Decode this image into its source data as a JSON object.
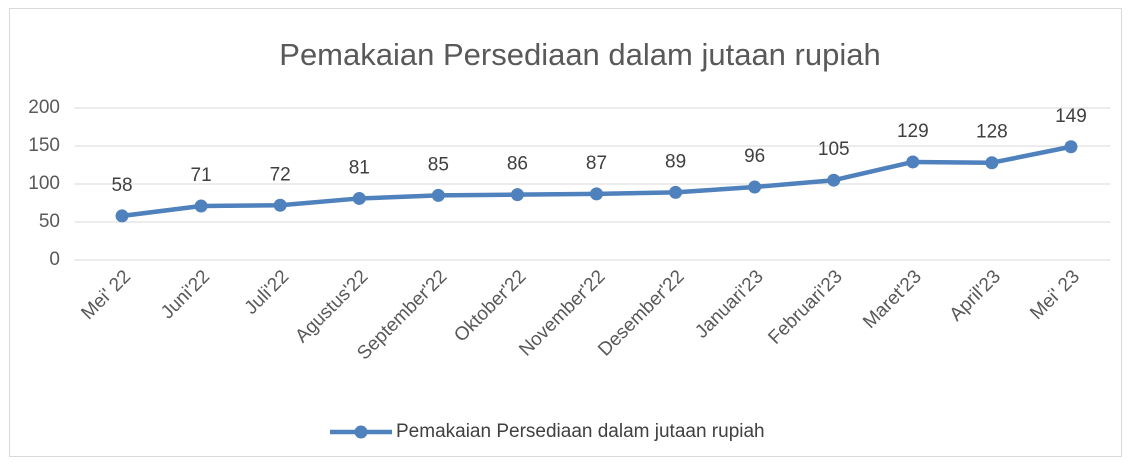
{
  "chart_data": {
    "type": "line",
    "title": "Pemakaian Persediaan dalam jutaan rupiah",
    "categories": [
      "Mei' 22",
      "Juni'22",
      "Juli'22",
      "Agustus'22",
      "September'22",
      "Oktober'22",
      "November'22",
      "Desember'22",
      "Januari'23",
      "Februari'23",
      "Maret'23",
      "April'23",
      "Mei' 23"
    ],
    "series": [
      {
        "name": "Pemakaian Persediaan dalam jutaan rupiah",
        "color": "#4f81bd",
        "values": [
          58,
          71,
          72,
          81,
          85,
          86,
          87,
          89,
          96,
          105,
          129,
          128,
          149
        ]
      }
    ],
    "ylim": [
      0,
      200
    ],
    "yticks": [
      0,
      50,
      100,
      150,
      200
    ],
    "grid": true,
    "legend": "bottom",
    "data_labels": true
  }
}
